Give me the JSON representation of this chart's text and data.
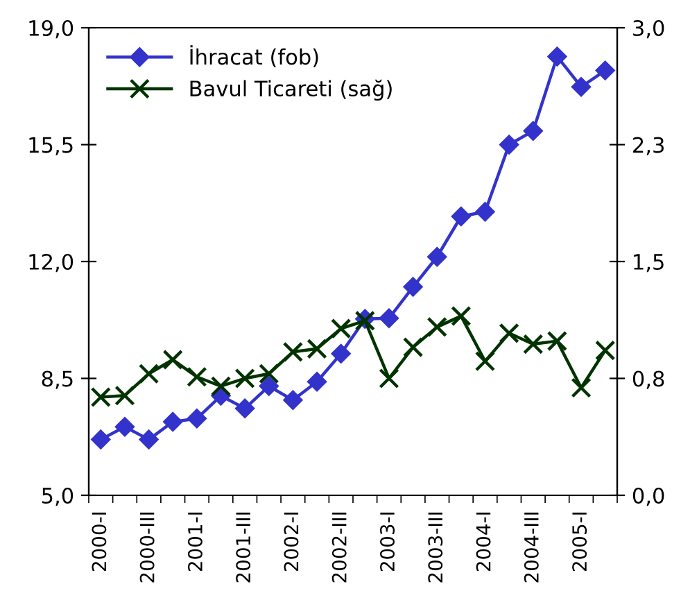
{
  "chart_data": {
    "type": "line",
    "categories": [
      "2000-I",
      null,
      "2000-III",
      null,
      "2001-I",
      null,
      "2001-III",
      null,
      "2002-I",
      null,
      "2002-III",
      null,
      "2003-I",
      null,
      "2003-III",
      null,
      "2004-I",
      null,
      "2004-III",
      null,
      "2005-I",
      null
    ],
    "series": [
      {
        "name": "İhracat (fob)",
        "color": "#3333cc",
        "marker": "diamond",
        "values": [
          6.67,
          7.05,
          6.67,
          7.2,
          7.3,
          7.98,
          7.6,
          8.27,
          7.85,
          8.4,
          9.24,
          10.28,
          10.3,
          11.24,
          12.14,
          13.35,
          13.49,
          15.5,
          15.91,
          18.14,
          17.23,
          17.72
        ]
      },
      {
        "name": "Bavul Ticareti (sağ)",
        "color": "#003300",
        "marker": "cross",
        "axis": "y2",
        "values": [
          0.63,
          0.64,
          0.78,
          0.87,
          0.76,
          0.7,
          0.75,
          0.78,
          0.92,
          0.94,
          1.07,
          1.12,
          0.75,
          0.95,
          1.08,
          1.15,
          0.86,
          1.04,
          0.97,
          0.99,
          0.69,
          0.93
        ]
      }
    ],
    "ylim": [
      5.0,
      19.0
    ],
    "yticks": [
      {
        "value": 5.0,
        "label": "5,0"
      },
      {
        "value": 8.5,
        "label": "8,5"
      },
      {
        "value": 12.0,
        "label": "12,0"
      },
      {
        "value": 15.5,
        "label": "15,5"
      },
      {
        "value": 19.0,
        "label": "19,0"
      }
    ],
    "y2lim": [
      0.0,
      3.0
    ],
    "y2ticks": [
      {
        "value": 0.0,
        "label": "0,0"
      },
      {
        "value": 0.75,
        "label": "0,8"
      },
      {
        "value": 1.5,
        "label": "1,5"
      },
      {
        "value": 2.25,
        "label": "2,3"
      },
      {
        "value": 3.0,
        "label": "3,0"
      }
    ],
    "legend": "top left",
    "grid": false,
    "line_style": "solid"
  }
}
